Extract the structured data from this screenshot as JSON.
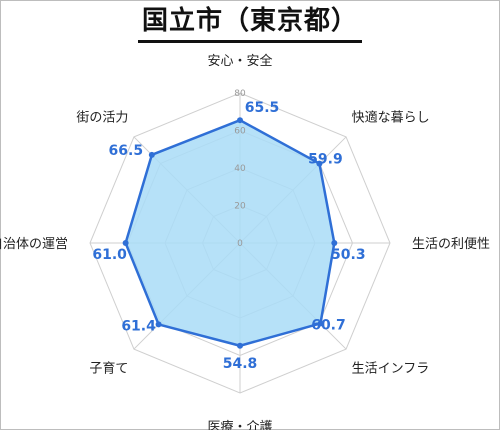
{
  "chart_data": {
    "type": "radar",
    "title": "国立市（東京都）",
    "categories": [
      "安心・安全",
      "快適な暮らし",
      "生活の利便性",
      "生活インフラ",
      "医療・介護",
      "子育て",
      "自治体の運営",
      "街の活力"
    ],
    "values": [
      65.5,
      59.9,
      50.3,
      60.7,
      54.8,
      61.4,
      61.0,
      66.5
    ],
    "value_labels": [
      "65.5",
      "59.9",
      "50.3",
      "60.7",
      "54.8",
      "61.4",
      "61.0",
      "66.5"
    ],
    "ticks": [
      0,
      20,
      40,
      60,
      80
    ],
    "tick_labels": [
      "0",
      "20",
      "40",
      "60",
      "80"
    ],
    "rlim": [
      0,
      80
    ],
    "grid": true,
    "colors": {
      "line": "#2f6fd6",
      "fill": "#a9dcf7",
      "value_text": "#2f6fd6",
      "grid": "#cfcfcf"
    }
  }
}
